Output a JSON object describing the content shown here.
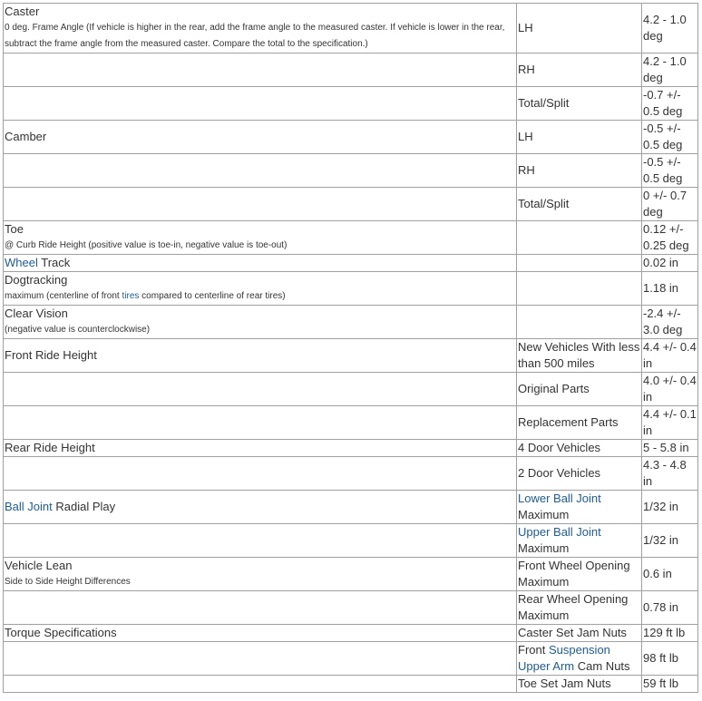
{
  "table": {
    "rows": [
      [
        [
          {
            "style": "main",
            "parts": [
              "Caster"
            ]
          },
          {
            "style": "note",
            "parts": [
              "0 deg. Frame Angle (If vehicle is higher in the rear, add the frame angle to the measured caster. If vehicle is lower in the rear, subtract the frame angle from the measured caster. Compare the total to the specification.)"
            ]
          }
        ],
        [
          {
            "style": "main",
            "parts": [
              "LH"
            ]
          }
        ],
        [
          {
            "style": "main",
            "parts": [
              "4.2 - 1.0 deg"
            ]
          }
        ]
      ],
      [
        [],
        [
          {
            "style": "main",
            "parts": [
              "RH"
            ]
          }
        ],
        [
          {
            "style": "main",
            "parts": [
              "4.2 - 1.0 deg"
            ]
          }
        ]
      ],
      [
        [],
        [
          {
            "style": "main",
            "parts": [
              "Total/Split"
            ]
          }
        ],
        [
          {
            "style": "main",
            "parts": [
              "-0.7 +/- 0.5 deg"
            ]
          }
        ]
      ],
      [
        [
          {
            "style": "main",
            "parts": [
              "Camber"
            ]
          }
        ],
        [
          {
            "style": "main",
            "parts": [
              "LH"
            ]
          }
        ],
        [
          {
            "style": "main",
            "parts": [
              "-0.5 +/- 0.5 deg"
            ]
          }
        ]
      ],
      [
        [],
        [
          {
            "style": "main",
            "parts": [
              "RH"
            ]
          }
        ],
        [
          {
            "style": "main",
            "parts": [
              "-0.5 +/- 0.5 deg"
            ]
          }
        ]
      ],
      [
        [],
        [
          {
            "style": "main",
            "parts": [
              "Total/Split"
            ]
          }
        ],
        [
          {
            "style": "main",
            "parts": [
              "0 +/- 0.7 deg"
            ]
          }
        ]
      ],
      [
        [
          {
            "style": "main",
            "parts": [
              "Toe"
            ]
          },
          {
            "style": "note",
            "parts": [
              "@ Curb Ride Height (positive value is toe-in, negative value is toe-out)"
            ]
          }
        ],
        [],
        [
          {
            "style": "main",
            "parts": [
              "0.12 +/- 0.25 deg"
            ]
          }
        ]
      ],
      [
        [
          {
            "style": "main",
            "parts": [
              {
                "link": "Wheel"
              },
              " Track"
            ]
          }
        ],
        [],
        [
          {
            "style": "main",
            "parts": [
              "0.02 in"
            ]
          }
        ]
      ],
      [
        [
          {
            "style": "main",
            "parts": [
              "Dogtracking"
            ]
          },
          {
            "style": "note",
            "parts": [
              "maximum (centerline of front ",
              {
                "link": "tires"
              },
              " compared to centerline of rear tires)"
            ]
          }
        ],
        [],
        [
          {
            "style": "main",
            "parts": [
              "1.18 in"
            ]
          }
        ]
      ],
      [
        [
          {
            "style": "main",
            "parts": [
              "Clear Vision"
            ]
          },
          {
            "style": "note",
            "parts": [
              "(negative value is counterclockwise)"
            ]
          }
        ],
        [],
        [
          {
            "style": "main",
            "parts": [
              "-2.4 +/- 3.0 deg"
            ]
          }
        ]
      ],
      [
        [
          {
            "style": "main",
            "parts": [
              "Front Ride Height"
            ]
          }
        ],
        [
          {
            "style": "main",
            "parts": [
              "New Vehicles With less than 500 miles"
            ]
          }
        ],
        [
          {
            "style": "main",
            "parts": [
              "4.4 +/- 0.4 in"
            ]
          }
        ]
      ],
      [
        [],
        [
          {
            "style": "main",
            "parts": [
              "Original Parts"
            ]
          }
        ],
        [
          {
            "style": "main",
            "parts": [
              "4.0 +/- 0.4 in"
            ]
          }
        ]
      ],
      [
        [],
        [
          {
            "style": "main",
            "parts": [
              "Replacement Parts"
            ]
          }
        ],
        [
          {
            "style": "main",
            "parts": [
              "4.4 +/- 0.1 in"
            ]
          }
        ]
      ],
      [
        [
          {
            "style": "main",
            "parts": [
              "Rear Ride Height"
            ]
          }
        ],
        [
          {
            "style": "main",
            "parts": [
              "4 Door Vehicles"
            ]
          }
        ],
        [
          {
            "style": "main",
            "parts": [
              "5 - 5.8 in"
            ]
          }
        ]
      ],
      [
        [],
        [
          {
            "style": "main",
            "parts": [
              "2 Door Vehicles"
            ]
          }
        ],
        [
          {
            "style": "main",
            "parts": [
              "4.3 - 4.8 in"
            ]
          }
        ]
      ],
      [
        [
          {
            "style": "main",
            "parts": [
              {
                "link": "Ball Joint"
              },
              " Radial Play"
            ]
          }
        ],
        [
          {
            "style": "main",
            "parts": [
              {
                "link": "Lower Ball Joint"
              }
            ]
          },
          {
            "style": "main",
            "parts": [
              "Maximum"
            ]
          }
        ],
        [
          {
            "style": "main",
            "parts": [
              "1/32 in"
            ]
          }
        ]
      ],
      [
        [],
        [
          {
            "style": "main",
            "parts": [
              {
                "link": "Upper Ball Joint"
              }
            ]
          },
          {
            "style": "main",
            "parts": [
              "Maximum"
            ]
          }
        ],
        [
          {
            "style": "main",
            "parts": [
              "1/32 in"
            ]
          }
        ]
      ],
      [
        [
          {
            "style": "main",
            "parts": [
              "Vehicle Lean"
            ]
          },
          {
            "style": "note",
            "parts": [
              "Side to Side Height Differences"
            ]
          }
        ],
        [
          {
            "style": "main",
            "parts": [
              "Front Wheel Opening Maximum"
            ]
          }
        ],
        [
          {
            "style": "main",
            "parts": [
              "0.6 in"
            ]
          }
        ]
      ],
      [
        [],
        [
          {
            "style": "main",
            "parts": [
              "Rear Wheel Opening Maximum"
            ]
          }
        ],
        [
          {
            "style": "main",
            "parts": [
              "0.78 in"
            ]
          }
        ]
      ],
      [
        [
          {
            "style": "main",
            "parts": [
              "Torque Specifications"
            ]
          }
        ],
        [
          {
            "style": "main",
            "parts": [
              "Caster Set Jam Nuts"
            ]
          }
        ],
        [
          {
            "style": "main",
            "parts": [
              "129 ft lb"
            ]
          }
        ]
      ],
      [
        [],
        [
          {
            "style": "main",
            "parts": [
              "Front ",
              {
                "link": "Suspension Upper Arm"
              },
              " Cam Nuts"
            ]
          }
        ],
        [
          {
            "style": "main",
            "parts": [
              "98 ft lb"
            ]
          }
        ]
      ],
      [
        [],
        [
          {
            "style": "main",
            "parts": [
              "Toe Set Jam Nuts"
            ]
          }
        ],
        [
          {
            "style": "main",
            "parts": [
              "59 ft lb"
            ]
          }
        ]
      ]
    ]
  }
}
